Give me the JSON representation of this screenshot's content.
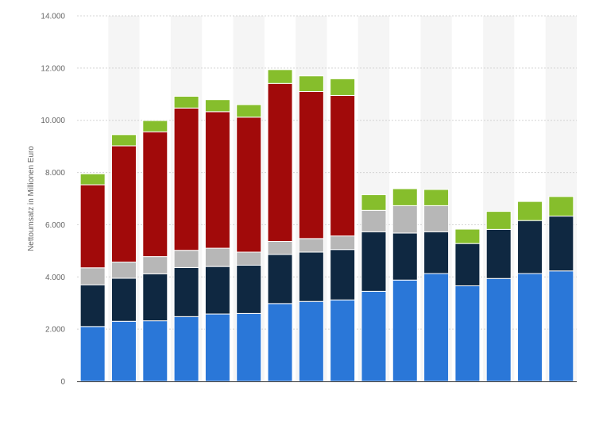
{
  "chart_data": {
    "type": "bar",
    "stacked": true,
    "title": "",
    "xlabel": "",
    "ylabel": "Nettoumsatz in Millionen Euro",
    "ylim": [
      0,
      14000
    ],
    "yticks": [
      0,
      2000,
      4000,
      6000,
      8000,
      10000,
      12000,
      14000
    ],
    "ytick_labels": [
      "0",
      "2.000",
      "4.000",
      "6.000",
      "8.000",
      "10.000",
      "12.000",
      "14.000"
    ],
    "grid": true,
    "alternating_column_shading": true,
    "categories": [
      "",
      "",
      "",
      "",
      "",
      "",
      "",
      "",
      "",
      "",
      "",
      "",
      "",
      "",
      "",
      ""
    ],
    "series": [
      {
        "color": "#2a77d8",
        "values": [
          2100,
          2300,
          2320,
          2480,
          2580,
          2600,
          2980,
          3060,
          3120,
          3450,
          3880,
          4130,
          3660,
          3940,
          4130,
          4230
        ]
      },
      {
        "color": "#0f2841",
        "values": [
          1600,
          1650,
          1800,
          1880,
          1820,
          1850,
          1880,
          1890,
          1930,
          2280,
          1800,
          1600,
          1620,
          1880,
          2030,
          2100
        ]
      },
      {
        "color": "#b7b7b7",
        "values": [
          650,
          620,
          660,
          660,
          700,
          500,
          500,
          520,
          520,
          820,
          1050,
          1000,
          0,
          0,
          0,
          0
        ]
      },
      {
        "color": "#a10a0a",
        "values": [
          3180,
          4450,
          4780,
          5450,
          5230,
          5170,
          6050,
          5630,
          5380,
          0,
          0,
          0,
          0,
          0,
          0,
          0
        ]
      },
      {
        "color": "#86be2c",
        "values": [
          420,
          430,
          430,
          450,
          460,
          480,
          530,
          600,
          640,
          600,
          650,
          620,
          550,
          690,
          730,
          750
        ]
      }
    ],
    "colors": {
      "grid": "#d4d4d4",
      "axis": "#333333",
      "stripe": "#f5f5f5"
    }
  }
}
